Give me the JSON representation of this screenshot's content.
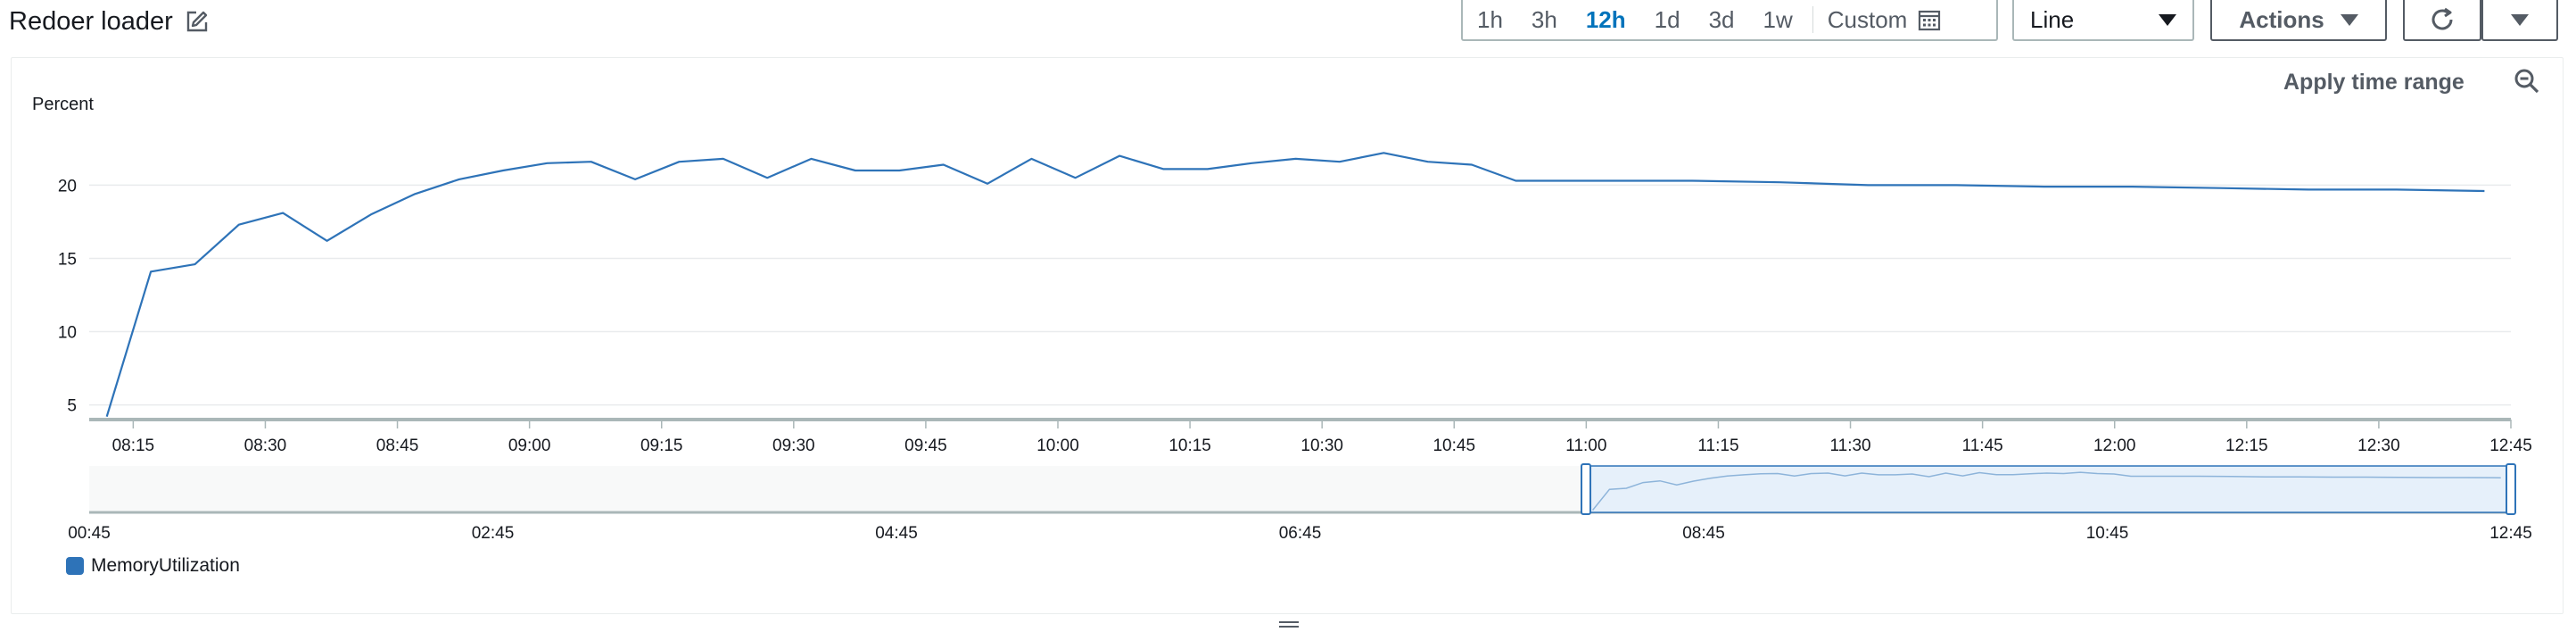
{
  "header": {
    "title": "Redoer loader",
    "edit_icon": "edit-icon"
  },
  "time_range": {
    "options": [
      "1h",
      "3h",
      "12h",
      "1d",
      "3d",
      "1w"
    ],
    "active": "12h",
    "custom_label": "Custom",
    "custom_icon": "calendar-icon"
  },
  "view_select": {
    "value": "Line"
  },
  "actions": {
    "label": "Actions"
  },
  "toolbar": {
    "refresh_icon": "refresh-icon",
    "more_icon": "caret-down-icon"
  },
  "panel": {
    "apply_time_range": "Apply time range",
    "zoom_out_icon": "zoom-out-icon"
  },
  "colors": {
    "series": "#2e73b8",
    "accent": "#0073bb"
  },
  "chart_data": {
    "type": "line",
    "ylabel": "Percent",
    "yticks": [
      5,
      10,
      15,
      20
    ],
    "ylim": [
      4,
      23.5
    ],
    "xticks": [
      "08:15",
      "08:30",
      "08:45",
      "09:00",
      "09:15",
      "09:30",
      "09:45",
      "10:00",
      "10:15",
      "10:30",
      "10:45",
      "11:00",
      "11:15",
      "11:30",
      "11:45",
      "12:00",
      "12:15",
      "12:30",
      "12:45"
    ],
    "xlim": [
      "08:10",
      "12:45"
    ],
    "grid": true,
    "legend_placement": "bottom-left",
    "series": [
      {
        "name": "MemoryUtilization",
        "color": "#2e73b8",
        "x": [
          "08:12",
          "08:17",
          "08:22",
          "08:27",
          "08:32",
          "08:37",
          "08:42",
          "08:47",
          "08:52",
          "08:57",
          "09:02",
          "09:07",
          "09:12",
          "09:17",
          "09:22",
          "09:27",
          "09:32",
          "09:37",
          "09:42",
          "09:47",
          "09:52",
          "09:57",
          "10:02",
          "10:07",
          "10:12",
          "10:17",
          "10:22",
          "10:27",
          "10:32",
          "10:37",
          "10:42",
          "10:47",
          "10:52",
          "11:02",
          "11:12",
          "11:22",
          "11:32",
          "11:42",
          "11:52",
          "12:02",
          "12:12",
          "12:22",
          "12:32",
          "12:42"
        ],
        "y": [
          4.2,
          14.1,
          14.6,
          17.3,
          18.1,
          16.2,
          18.0,
          19.4,
          20.4,
          21.0,
          21.5,
          21.6,
          20.4,
          21.6,
          21.8,
          20.5,
          21.8,
          21.0,
          21.0,
          21.4,
          20.1,
          21.8,
          20.5,
          22.0,
          21.1,
          21.1,
          21.5,
          21.8,
          21.6,
          22.2,
          21.6,
          21.4,
          20.3,
          20.3,
          20.3,
          20.2,
          20.0,
          20.0,
          19.9,
          19.9,
          19.8,
          19.7,
          19.7,
          19.6
        ]
      }
    ],
    "navigator": {
      "xticks": [
        "00:45",
        "02:45",
        "04:45",
        "06:45",
        "08:45",
        "10:45",
        "12:45"
      ],
      "xlim": [
        "00:45",
        "12:45"
      ],
      "selection": [
        "08:10",
        "12:45"
      ]
    }
  }
}
